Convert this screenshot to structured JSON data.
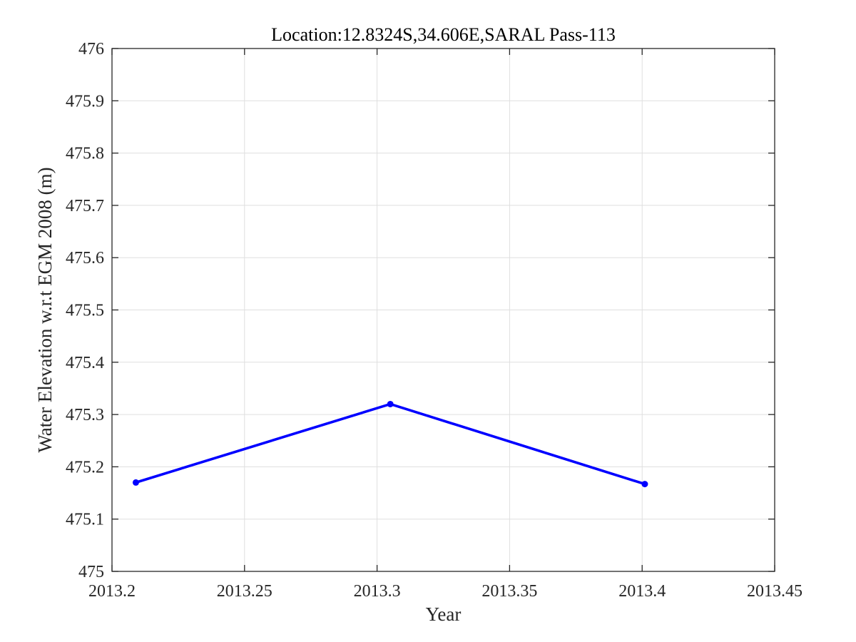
{
  "chart_data": {
    "type": "line",
    "title": "Location:12.8324S,34.606E,SARAL Pass-113",
    "xlabel": "Year",
    "ylabel": "Water Elevation w.r.t EGM 2008 (m)",
    "xlim": [
      2013.2,
      2013.45
    ],
    "ylim": [
      475,
      476
    ],
    "xticks": [
      2013.2,
      2013.25,
      2013.3,
      2013.35,
      2013.4,
      2013.45
    ],
    "xtick_labels": [
      "2013.2",
      "2013.25",
      "2013.3",
      "2013.35",
      "2013.4",
      "2013.45"
    ],
    "yticks": [
      475,
      475.1,
      475.2,
      475.3,
      475.4,
      475.5,
      475.6,
      475.7,
      475.8,
      475.9,
      476
    ],
    "ytick_labels": [
      "475",
      "475.1",
      "475.2",
      "475.3",
      "475.4",
      "475.5",
      "475.6",
      "475.7",
      "475.8",
      "475.9",
      "476"
    ],
    "grid": true,
    "series": [
      {
        "x": [
          2013.209,
          2013.305,
          2013.401
        ],
        "y": [
          475.17,
          475.32,
          475.167
        ],
        "color": "#0000ff",
        "marker": "dot"
      }
    ]
  }
}
